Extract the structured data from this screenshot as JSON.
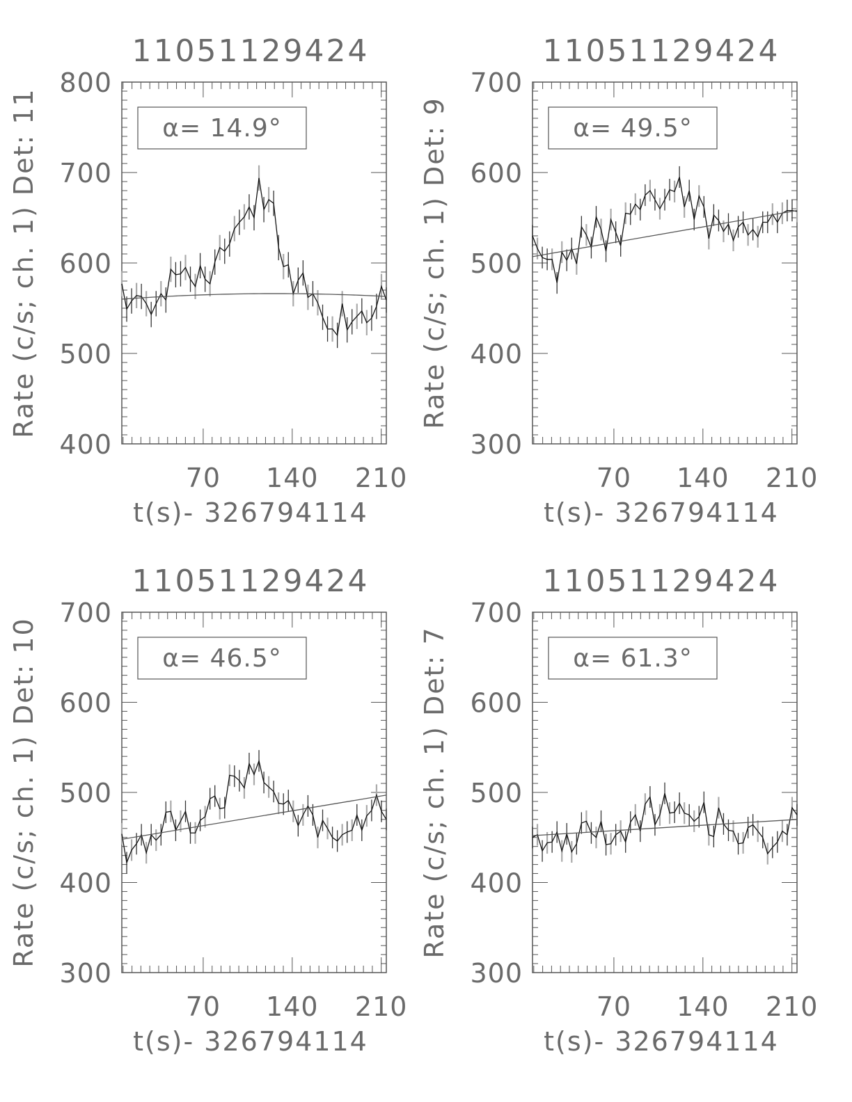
{
  "chart_data": [
    {
      "type": "line",
      "title": "11051129424",
      "xlabel": "t(s)- 326794114",
      "ylabel": "Rate (c/s; ch. 1) Det: 11",
      "annotation": "α= 14.9°",
      "xlim": [
        6,
        214
      ],
      "ylim": [
        400,
        800
      ],
      "xticks": [
        70,
        140,
        210
      ],
      "yticks": [
        400,
        500,
        600,
        700,
        800
      ],
      "grid": false,
      "series": [
        {
          "values": [
            577,
            549,
            558,
            564,
            563,
            555,
            543,
            555,
            566,
            559,
            593,
            587,
            588,
            595,
            582,
            574,
            597,
            582,
            577,
            601,
            617,
            613,
            621,
            638,
            645,
            651,
            662,
            650,
            694,
            659,
            670,
            666,
            617,
            596,
            598,
            566,
            581,
            589,
            562,
            566,
            556,
            540,
            527,
            527,
            520,
            555,
            526,
            535,
            541,
            547,
            534,
            539,
            552,
            574,
            559
          ]
        }
      ],
      "fit": {
        "points": [
          [
            6,
            560
          ],
          [
            110,
            566
          ],
          [
            214,
            563
          ]
        ]
      }
    },
    {
      "type": "line",
      "title": "11051129424",
      "xlabel": "t(s)- 326794114",
      "ylabel": "Rate (c/s; ch. 1) Det: 9",
      "annotation": "α= 49.5°",
      "xlim": [
        6,
        214
      ],
      "ylim": [
        300,
        700
      ],
      "xticks": [
        70,
        140,
        210
      ],
      "yticks": [
        300,
        400,
        500,
        600,
        700
      ],
      "grid": false,
      "series": [
        {
          "values": [
            530,
            516,
            506,
            504,
            504,
            478,
            512,
            503,
            516,
            499,
            540,
            531,
            517,
            551,
            537,
            513,
            548,
            534,
            519,
            555,
            554,
            565,
            559,
            575,
            580,
            570,
            560,
            570,
            581,
            579,
            595,
            562,
            580,
            548,
            574,
            562,
            527,
            553,
            547,
            535,
            543,
            525,
            540,
            545,
            531,
            537,
            529,
            545,
            545,
            554,
            545,
            555,
            558,
            558,
            557
          ]
        }
      ],
      "fit": {
        "points": [
          [
            6,
            507
          ],
          [
            214,
            558
          ]
        ]
      }
    },
    {
      "type": "line",
      "title": "11051129424",
      "xlabel": "t(s)- 326794114",
      "ylabel": "Rate (c/s; ch. 1) Det: 10",
      "annotation": "α= 46.5°",
      "xlim": [
        6,
        214
      ],
      "ylim": [
        300,
        700
      ],
      "xticks": [
        70,
        140,
        210
      ],
      "yticks": [
        300,
        400,
        500,
        600,
        700
      ],
      "grid": false,
      "series": [
        {
          "values": [
            454,
            422,
            436,
            443,
            453,
            433,
            453,
            447,
            453,
            478,
            479,
            458,
            468,
            479,
            455,
            455,
            469,
            473,
            493,
            496,
            482,
            483,
            519,
            518,
            513,
            505,
            532,
            520,
            535,
            511,
            506,
            501,
            488,
            487,
            491,
            479,
            463,
            475,
            485,
            475,
            450,
            469,
            460,
            450,
            446,
            453,
            456,
            458,
            475,
            458,
            474,
            480,
            497,
            479,
            470
          ]
        }
      ],
      "fit": {
        "points": [
          [
            6,
            448
          ],
          [
            214,
            497
          ]
        ]
      }
    },
    {
      "type": "line",
      "title": "11051129424",
      "xlabel": "t(s)- 326794114",
      "ylabel": "Rate (c/s; ch. 1) Det: 7",
      "annotation": "α= 61.3°",
      "xlim": [
        6,
        214
      ],
      "ylim": [
        300,
        700
      ],
      "xticks": [
        70,
        140,
        210
      ],
      "yticks": [
        300,
        400,
        500,
        600,
        700
      ],
      "grid": false,
      "series": [
        {
          "values": [
            450,
            453,
            435,
            444,
            445,
            456,
            435,
            454,
            434,
            443,
            466,
            468,
            455,
            450,
            468,
            442,
            443,
            453,
            457,
            445,
            467,
            475,
            457,
            487,
            495,
            464,
            475,
            499,
            477,
            478,
            488,
            477,
            475,
            468,
            473,
            489,
            453,
            451,
            483,
            465,
            458,
            457,
            443,
            444,
            461,
            464,
            457,
            450,
            432,
            439,
            445,
            457,
            453,
            483,
            475
          ]
        }
      ],
      "fit": {
        "points": [
          [
            6,
            452
          ],
          [
            214,
            470
          ]
        ]
      }
    }
  ]
}
